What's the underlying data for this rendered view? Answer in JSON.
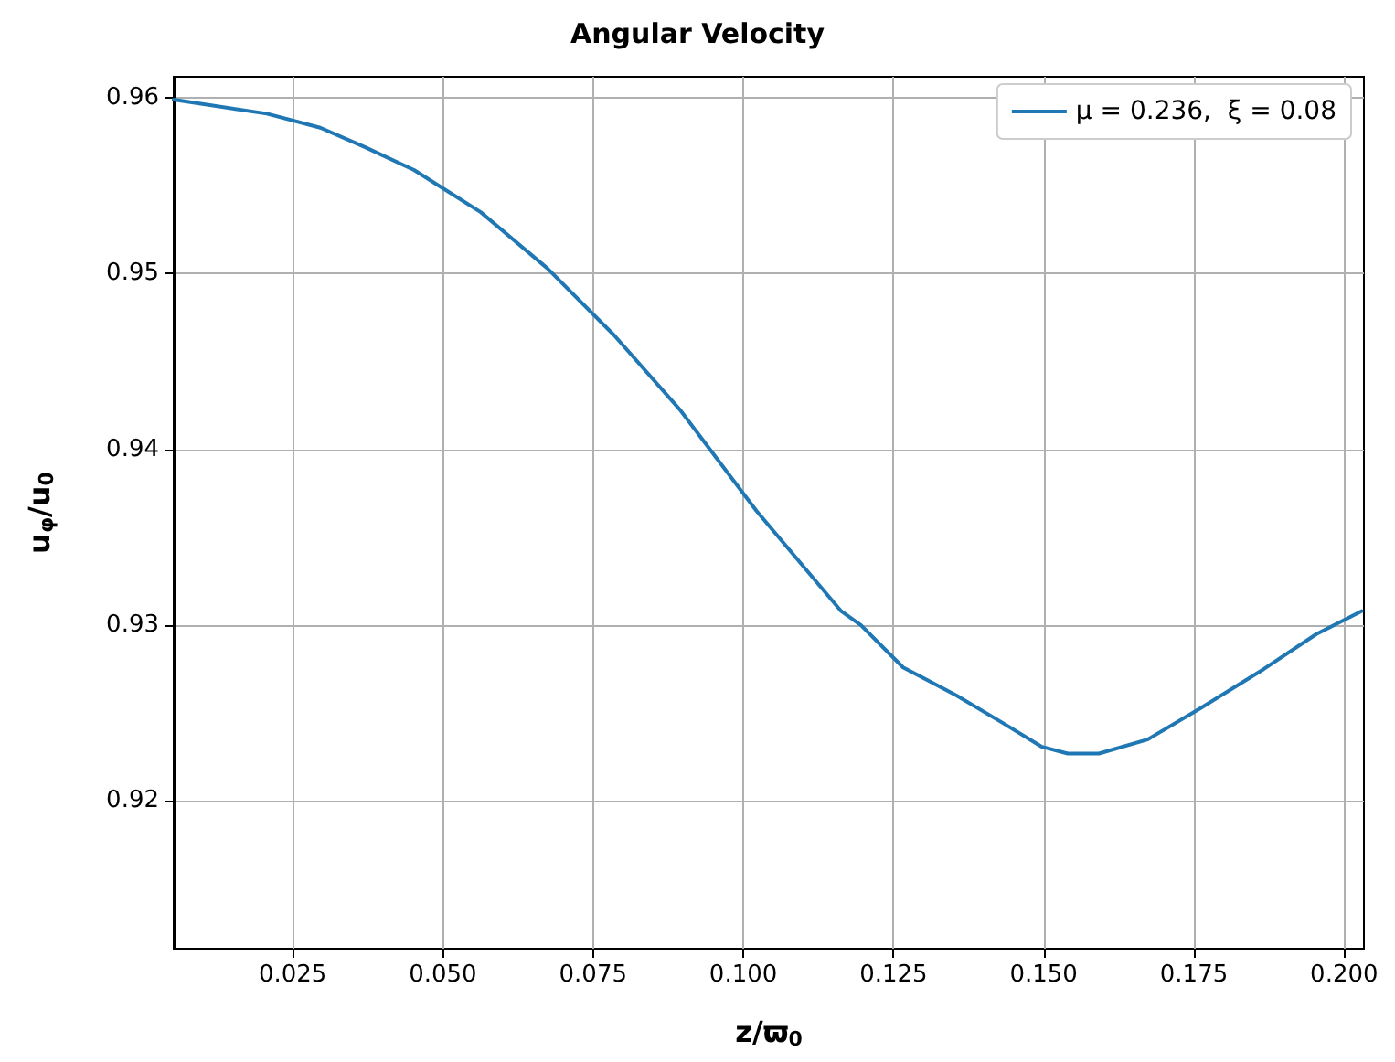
{
  "chart_data": {
    "type": "line",
    "title": "Angular Velocity",
    "xlabel": "z/ϖ$_{0}$",
    "ylabel": "u$_{φ}$/u$_{0}$",
    "x": [
      0.0052,
      0.0207,
      0.0296,
      0.037,
      0.0452,
      0.0563,
      0.0674,
      0.0785,
      0.0896,
      0.1022,
      0.1163,
      0.1196,
      0.1266,
      0.1355,
      0.1429,
      0.1496,
      0.154,
      0.1592,
      0.1673,
      0.1762,
      0.1866,
      0.1954,
      0.2029
    ],
    "series": [
      {
        "name": "μ = 0.236,  ξ = 0.08",
        "color": "#1f77b4",
        "values": [
          0.9599,
          0.9591,
          0.9583,
          0.9572,
          0.9559,
          0.9535,
          0.9503,
          0.9465,
          0.9422,
          0.9365,
          0.9308,
          0.93,
          0.9276,
          0.926,
          0.9245,
          0.9231,
          0.9227,
          0.9227,
          0.9235,
          0.9253,
          0.9275,
          0.9295,
          0.9308
        ]
      }
    ],
    "xlim": [
      0.0052,
      0.2033
    ],
    "ylim": [
      0.9116,
      0.9612
    ],
    "xticks": [
      {
        "value": 0.025,
        "label": "0.025"
      },
      {
        "value": 0.05,
        "label": "0.050"
      },
      {
        "value": 0.075,
        "label": "0.075"
      },
      {
        "value": 0.1,
        "label": "0.100"
      },
      {
        "value": 0.125,
        "label": "0.125"
      },
      {
        "value": 0.15,
        "label": "0.150"
      },
      {
        "value": 0.175,
        "label": "0.175"
      },
      {
        "value": 0.2,
        "label": "0.200"
      }
    ],
    "yticks": [
      0.92,
      0.93,
      0.94,
      0.95,
      0.96
    ],
    "grid": true,
    "legend": "top right",
    "marker": "none",
    "line_style": "solid"
  }
}
